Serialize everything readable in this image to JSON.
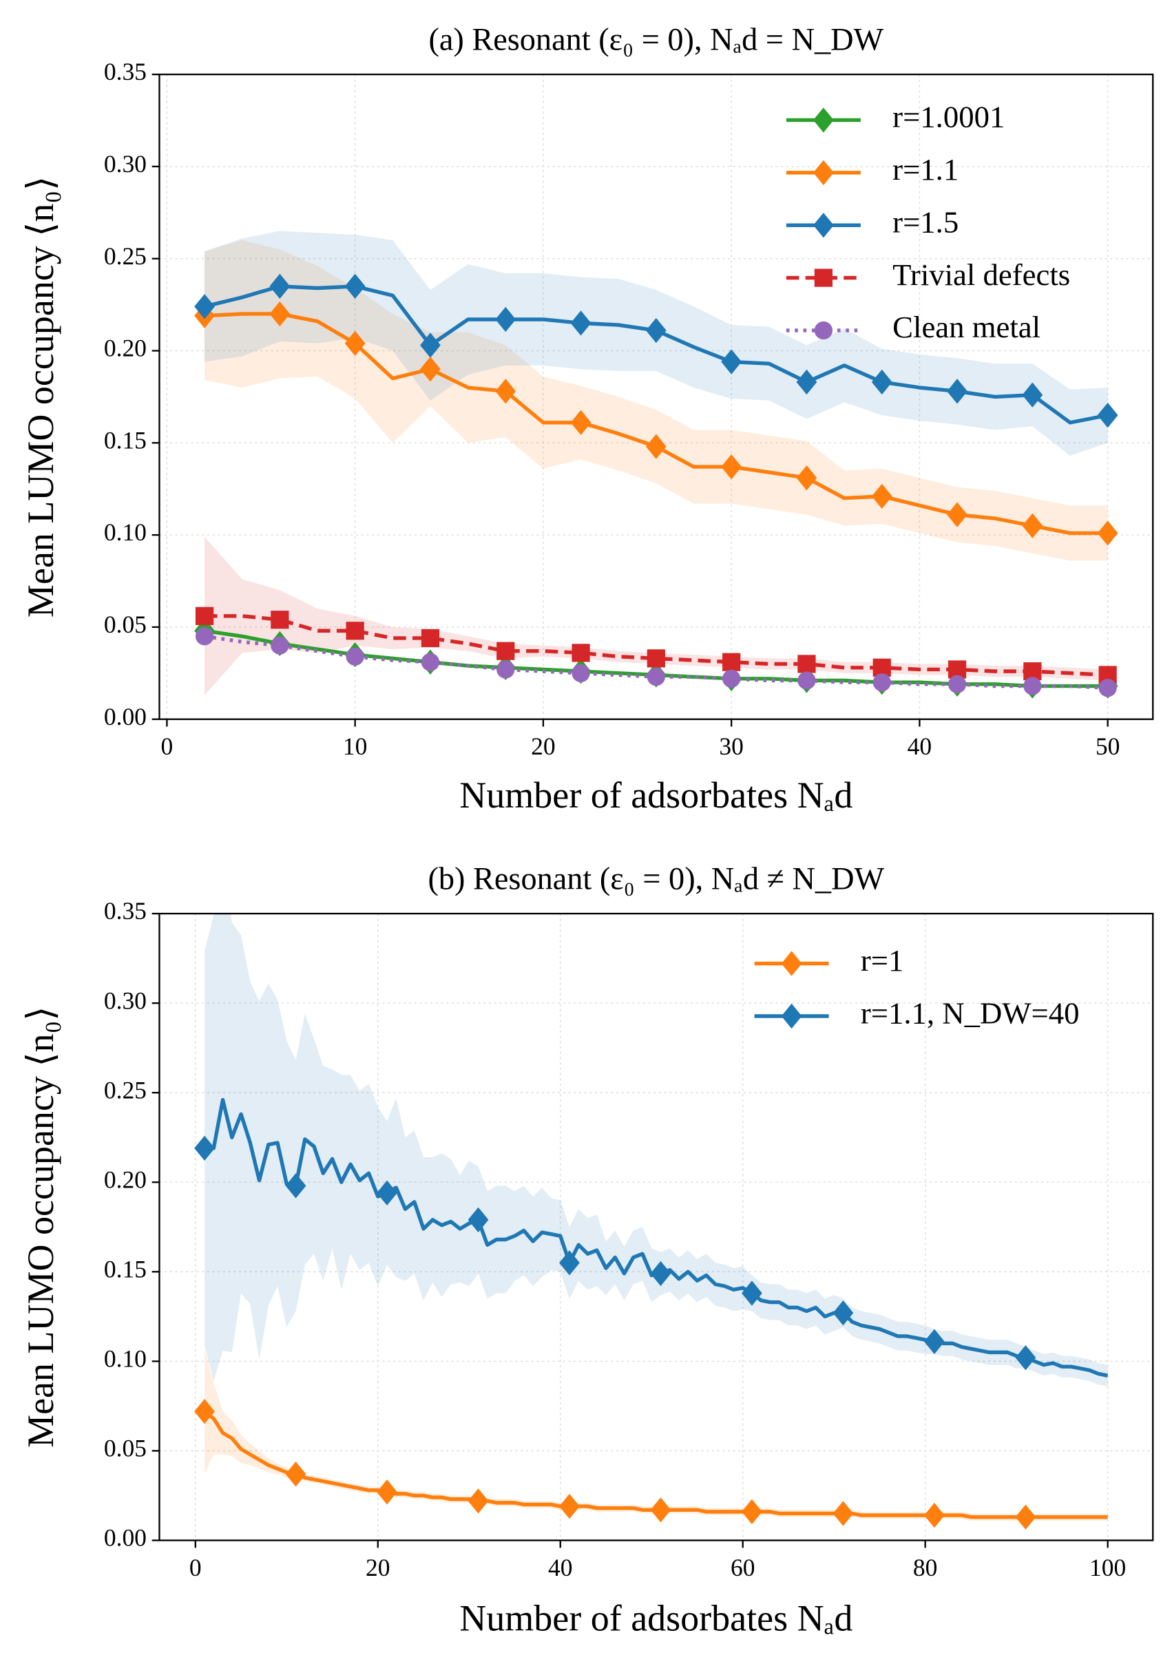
{
  "chart_data": [
    {
      "type": "line",
      "title": "(a) Resonant (ε₀ = 0), Nₐd = N_DW",
      "xlabel": "Number of adsorbates Nₐd",
      "ylabel": "Mean LUMO occupancy ⟨n₀⟩",
      "x": [
        2,
        4,
        6,
        8,
        10,
        12,
        14,
        16,
        18,
        20,
        22,
        24,
        26,
        28,
        30,
        32,
        34,
        36,
        38,
        40,
        42,
        44,
        46,
        48,
        50
      ],
      "xlim": [
        -0.4,
        52.4
      ],
      "xticks": [
        0,
        10,
        20,
        30,
        40,
        50
      ],
      "ylim": [
        0,
        0.35
      ],
      "yticks": [
        {
          "value": 0,
          "label": "0.00"
        },
        {
          "value": 0.05,
          "label": "0.05"
        },
        {
          "value": 0.1,
          "label": "0.10"
        },
        {
          "value": 0.15,
          "label": "0.15"
        },
        {
          "value": 0.2,
          "label": "0.20"
        },
        {
          "value": 0.25,
          "label": "0.25"
        },
        {
          "value": 0.3,
          "label": "0.30"
        },
        {
          "value": 0.35,
          "label": "0.35"
        }
      ],
      "grid": true,
      "legend": "upper right",
      "series": [
        {
          "name": "r=1.0001",
          "color": "#2ca02c",
          "linestyle": "solid",
          "marker": "diamond",
          "markevery": 2,
          "values": [
            0.048,
            0.045,
            0.041,
            0.038,
            0.035,
            0.033,
            0.031,
            0.029,
            0.028,
            0.027,
            0.026,
            0.025,
            0.024,
            0.023,
            0.022,
            0.022,
            0.021,
            0.021,
            0.02,
            0.02,
            0.019,
            0.019,
            0.018,
            0.018,
            0.018
          ]
        },
        {
          "name": "r=1.1",
          "color": "#ff7f0e",
          "linestyle": "solid",
          "marker": "diamond",
          "markevery": 2,
          "values": [
            0.219,
            0.22,
            0.22,
            0.216,
            0.204,
            0.185,
            0.19,
            0.18,
            0.178,
            0.161,
            0.161,
            0.155,
            0.148,
            0.137,
            0.137,
            0.134,
            0.131,
            0.12,
            0.121,
            0.116,
            0.111,
            0.109,
            0.105,
            0.101,
            0.101
          ],
          "errors": [
            0.035,
            0.04,
            0.035,
            0.03,
            0.03,
            0.035,
            0.02,
            0.03,
            0.025,
            0.025,
            0.02,
            0.02,
            0.02,
            0.02,
            0.02,
            0.02,
            0.02,
            0.015,
            0.015,
            0.015,
            0.015,
            0.015,
            0.015,
            0.015,
            0.015
          ]
        },
        {
          "name": "r=1.5",
          "color": "#1f77b4",
          "linestyle": "solid",
          "marker": "diamond",
          "markevery": 2,
          "values": [
            0.224,
            0.229,
            0.235,
            0.234,
            0.235,
            0.23,
            0.203,
            0.217,
            0.217,
            0.217,
            0.215,
            0.214,
            0.211,
            0.202,
            0.194,
            0.193,
            0.183,
            0.192,
            0.183,
            0.18,
            0.178,
            0.175,
            0.176,
            0.161,
            0.165
          ],
          "errors": [
            0.03,
            0.032,
            0.03,
            0.03,
            0.028,
            0.03,
            0.03,
            0.03,
            0.025,
            0.025,
            0.025,
            0.025,
            0.022,
            0.022,
            0.02,
            0.02,
            0.02,
            0.02,
            0.018,
            0.018,
            0.018,
            0.018,
            0.017,
            0.018,
            0.015
          ]
        },
        {
          "name": "Trivial defects",
          "color": "#d62728",
          "linestyle": "dashed",
          "marker": "square",
          "markevery": 2,
          "values": [
            0.056,
            0.056,
            0.054,
            0.048,
            0.048,
            0.044,
            0.044,
            0.041,
            0.037,
            0.037,
            0.036,
            0.034,
            0.033,
            0.032,
            0.031,
            0.03,
            0.03,
            0.028,
            0.028,
            0.027,
            0.027,
            0.026,
            0.026,
            0.025,
            0.024
          ],
          "errors": [
            0.043,
            0.02,
            0.016,
            0.012,
            0.008,
            0.006,
            0.005,
            0.004,
            0.004,
            0.003,
            0.003,
            0.003,
            0.003,
            0.003,
            0.003,
            0.003,
            0.003,
            0.003,
            0.003,
            0.003,
            0.003,
            0.003,
            0.003,
            0.003,
            0.003
          ]
        },
        {
          "name": "Clean metal",
          "color": "#9467bd",
          "linestyle": "dotted",
          "marker": "circle",
          "markevery": 2,
          "values": [
            0.045,
            0.042,
            0.04,
            0.037,
            0.034,
            0.032,
            0.031,
            0.029,
            0.027,
            0.026,
            0.025,
            0.024,
            0.023,
            0.023,
            0.022,
            0.021,
            0.021,
            0.02,
            0.02,
            0.019,
            0.019,
            0.018,
            0.018,
            0.018,
            0.017
          ]
        }
      ]
    },
    {
      "type": "line",
      "title": "(b) Resonant (ε₀ = 0), Nₐd ≠ N_DW",
      "xlabel": "Number of adsorbates Nₐd",
      "ylabel": "Mean LUMO occupancy ⟨n₀⟩",
      "x": [
        1,
        2,
        3,
        4,
        5,
        6,
        7,
        8,
        9,
        10,
        11,
        12,
        13,
        14,
        15,
        16,
        17,
        18,
        19,
        20,
        21,
        22,
        23,
        24,
        25,
        26,
        27,
        28,
        29,
        30,
        31,
        32,
        33,
        34,
        35,
        36,
        37,
        38,
        39,
        40,
        41,
        42,
        43,
        44,
        45,
        46,
        47,
        48,
        49,
        50,
        51,
        52,
        53,
        54,
        55,
        56,
        57,
        58,
        59,
        60,
        61,
        62,
        63,
        64,
        65,
        66,
        67,
        68,
        69,
        70,
        71,
        72,
        73,
        74,
        75,
        76,
        77,
        78,
        79,
        80,
        81,
        82,
        83,
        84,
        85,
        86,
        87,
        88,
        89,
        90,
        91,
        92,
        93,
        94,
        95,
        96,
        97,
        98,
        99,
        100
      ],
      "xlim": [
        -3.95,
        104.95
      ],
      "xticks": [
        0,
        20,
        40,
        60,
        80,
        100
      ],
      "ylim": [
        0,
        0.35
      ],
      "yticks": [
        {
          "value": 0,
          "label": "0.00"
        },
        {
          "value": 0.05,
          "label": "0.05"
        },
        {
          "value": 0.1,
          "label": "0.10"
        },
        {
          "value": 0.15,
          "label": "0.15"
        },
        {
          "value": 0.2,
          "label": "0.20"
        },
        {
          "value": 0.25,
          "label": "0.25"
        },
        {
          "value": 0.3,
          "label": "0.30"
        },
        {
          "value": 0.35,
          "label": "0.35"
        }
      ],
      "grid": true,
      "legend": "upper right",
      "series": [
        {
          "name": "r=1",
          "color": "#ff7f0e",
          "linestyle": "solid",
          "marker": "diamond",
          "markevery": 10,
          "values": [
            0.072,
            0.068,
            0.06,
            0.057,
            0.051,
            0.048,
            0.045,
            0.042,
            0.04,
            0.038,
            0.037,
            0.035,
            0.034,
            0.033,
            0.032,
            0.031,
            0.03,
            0.029,
            0.028,
            0.028,
            0.027,
            0.026,
            0.026,
            0.025,
            0.025,
            0.024,
            0.024,
            0.023,
            0.023,
            0.023,
            0.022,
            0.022,
            0.021,
            0.021,
            0.021,
            0.02,
            0.02,
            0.02,
            0.02,
            0.019,
            0.019,
            0.019,
            0.019,
            0.018,
            0.018,
            0.018,
            0.018,
            0.018,
            0.017,
            0.017,
            0.017,
            0.017,
            0.017,
            0.017,
            0.017,
            0.016,
            0.016,
            0.016,
            0.016,
            0.016,
            0.016,
            0.016,
            0.016,
            0.015,
            0.015,
            0.015,
            0.015,
            0.015,
            0.015,
            0.015,
            0.015,
            0.015,
            0.014,
            0.014,
            0.014,
            0.014,
            0.014,
            0.014,
            0.014,
            0.014,
            0.014,
            0.014,
            0.014,
            0.014,
            0.013,
            0.013,
            0.013,
            0.013,
            0.013,
            0.013,
            0.013,
            0.013,
            0.013,
            0.013,
            0.013,
            0.013,
            0.013,
            0.013,
            0.013,
            0.013
          ],
          "errors": [
            0.035,
            0.02,
            0.012,
            0.01,
            0.008,
            0.006,
            0.005,
            0.004,
            0.003,
            0.003,
            0.002,
            0.002,
            0.002,
            0.002,
            0.002,
            0.002,
            0.002,
            0.002,
            0.002,
            0.002,
            0.002,
            0.002,
            0.002,
            0.002,
            0.002,
            0.002,
            0.002,
            0.002,
            0.002,
            0.002,
            0.002,
            0.002,
            0.002,
            0.002,
            0.002,
            0.002,
            0.002,
            0.002,
            0.002,
            0.002,
            0.002,
            0.002,
            0.002,
            0.002,
            0.002,
            0.002,
            0.002,
            0.002,
            0.002,
            0.002,
            0.002,
            0.002,
            0.002,
            0.002,
            0.002,
            0.002,
            0.002,
            0.002,
            0.002,
            0.002,
            0.002,
            0.002,
            0.002,
            0.002,
            0.002,
            0.002,
            0.002,
            0.002,
            0.002,
            0.002,
            0.002,
            0.002,
            0.002,
            0.002,
            0.002,
            0.002,
            0.002,
            0.002,
            0.002,
            0.002,
            0.002,
            0.002,
            0.002,
            0.002,
            0.002,
            0.002,
            0.002,
            0.002,
            0.002,
            0.002,
            0.002,
            0.002,
            0.002,
            0.002,
            0.002,
            0.002,
            0.002,
            0.002,
            0.002,
            0.002
          ]
        },
        {
          "name": "r=1.1, N_DW=40",
          "color": "#1f77b4",
          "linestyle": "solid",
          "marker": "diamond",
          "markevery": 10,
          "values": [
            0.219,
            0.219,
            0.246,
            0.225,
            0.238,
            0.222,
            0.201,
            0.221,
            0.222,
            0.199,
            0.198,
            0.224,
            0.22,
            0.205,
            0.213,
            0.2,
            0.21,
            0.201,
            0.205,
            0.192,
            0.194,
            0.197,
            0.185,
            0.189,
            0.174,
            0.179,
            0.176,
            0.178,
            0.174,
            0.177,
            0.179,
            0.165,
            0.168,
            0.168,
            0.17,
            0.173,
            0.167,
            0.172,
            0.171,
            0.17,
            0.155,
            0.165,
            0.16,
            0.162,
            0.152,
            0.158,
            0.149,
            0.158,
            0.16,
            0.148,
            0.149,
            0.151,
            0.146,
            0.15,
            0.145,
            0.148,
            0.143,
            0.142,
            0.14,
            0.141,
            0.138,
            0.134,
            0.133,
            0.133,
            0.13,
            0.13,
            0.128,
            0.13,
            0.125,
            0.127,
            0.127,
            0.122,
            0.12,
            0.119,
            0.118,
            0.116,
            0.114,
            0.114,
            0.113,
            0.112,
            0.111,
            0.11,
            0.11,
            0.108,
            0.107,
            0.106,
            0.105,
            0.105,
            0.105,
            0.103,
            0.102,
            0.1,
            0.098,
            0.099,
            0.097,
            0.097,
            0.096,
            0.095,
            0.093,
            0.092
          ],
          "errors": [
            0.11,
            0.13,
            0.14,
            0.12,
            0.1,
            0.09,
            0.1,
            0.09,
            0.08,
            0.08,
            0.07,
            0.07,
            0.06,
            0.06,
            0.05,
            0.06,
            0.05,
            0.05,
            0.05,
            0.05,
            0.04,
            0.05,
            0.04,
            0.04,
            0.04,
            0.035,
            0.04,
            0.035,
            0.03,
            0.035,
            0.03,
            0.03,
            0.03,
            0.03,
            0.025,
            0.025,
            0.025,
            0.025,
            0.02,
            0.02,
            0.02,
            0.02,
            0.02,
            0.02,
            0.015,
            0.015,
            0.015,
            0.015,
            0.015,
            0.015,
            0.012,
            0.012,
            0.012,
            0.012,
            0.012,
            0.012,
            0.012,
            0.012,
            0.012,
            0.012,
            0.01,
            0.01,
            0.01,
            0.01,
            0.01,
            0.01,
            0.01,
            0.01,
            0.01,
            0.01,
            0.008,
            0.008,
            0.008,
            0.008,
            0.008,
            0.008,
            0.008,
            0.008,
            0.008,
            0.008,
            0.007,
            0.007,
            0.007,
            0.007,
            0.007,
            0.007,
            0.007,
            0.007,
            0.007,
            0.007,
            0.006,
            0.006,
            0.006,
            0.006,
            0.006,
            0.006,
            0.006,
            0.006,
            0.006,
            0.006
          ]
        }
      ]
    }
  ]
}
